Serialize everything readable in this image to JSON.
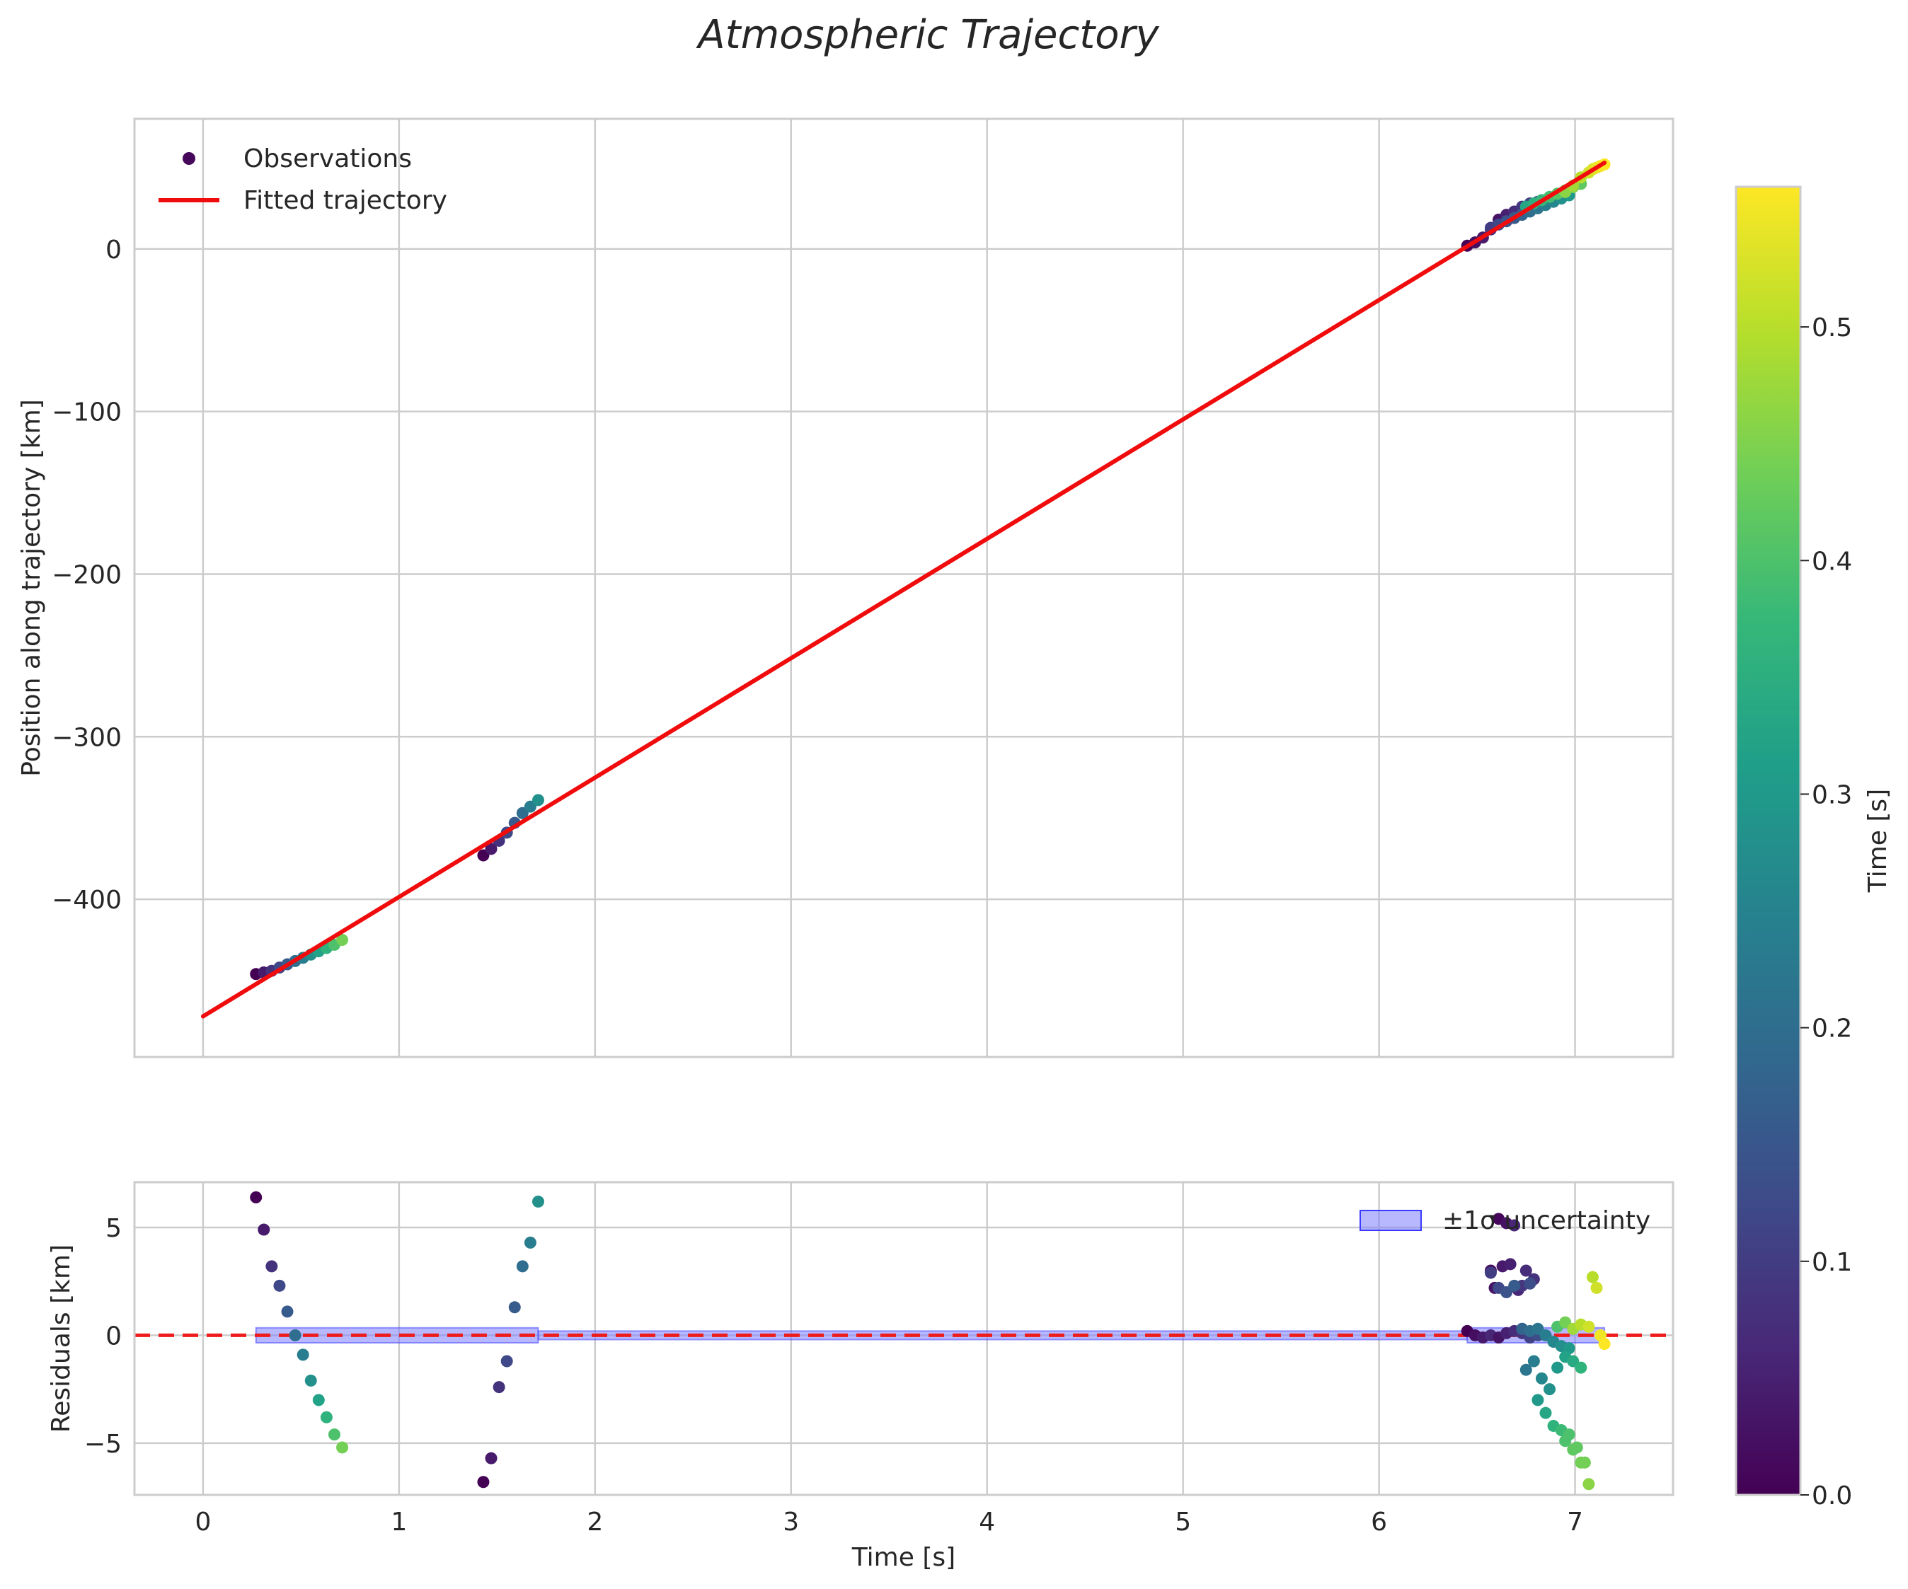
{
  "chart_data": {
    "type": "scatter",
    "title": "Atmospheric Trajectory",
    "colors": {
      "fit_line": "#f00c0c",
      "zero_line": "#ee1c1c",
      "band_fill": "#7e7eff",
      "band_edge": "#3b3bff",
      "grid": "#cccccc",
      "text": "#262626"
    },
    "top_panel": {
      "ylabel": "Position along trajectory [km]",
      "xlim": [
        -0.35,
        7.5
      ],
      "ylim": [
        -497,
        80
      ],
      "yticks": [
        0,
        -100,
        -200,
        -300,
        -400
      ],
      "ytick_labels": [
        "0",
        "−100",
        "−200",
        "−300",
        "−400"
      ],
      "legend": {
        "position": "upper-left",
        "observations_label": "Observations",
        "fit_label": "Fitted trajectory"
      },
      "fit_line": {
        "x": [
          0.0,
          7.15
        ],
        "y": [
          -472.0,
          53.0
        ]
      },
      "groups": [
        {
          "name": "group-1",
          "x": [
            0.27,
            0.31,
            0.35,
            0.39,
            0.43,
            0.47,
            0.51,
            0.55,
            0.59,
            0.63,
            0.67,
            0.71
          ],
          "y": [
            -446,
            -445,
            -444,
            -442,
            -440,
            -438,
            -436,
            -434,
            -432,
            -430,
            -428,
            -425
          ],
          "c": [
            0.0,
            0.04,
            0.08,
            0.12,
            0.16,
            0.2,
            0.24,
            0.28,
            0.32,
            0.36,
            0.4,
            0.44
          ]
        },
        {
          "name": "group-2",
          "x": [
            1.43,
            1.47,
            1.51,
            1.55,
            1.59,
            1.63,
            1.67,
            1.71
          ],
          "y": [
            -373,
            -369,
            -364,
            -359,
            -353,
            -347,
            -343,
            -339
          ],
          "c": [
            0.0,
            0.04,
            0.08,
            0.12,
            0.16,
            0.2,
            0.24,
            0.28
          ]
        },
        {
          "name": "group-3",
          "x": [
            6.45,
            6.49,
            6.53,
            6.57,
            6.61,
            6.65,
            6.69,
            6.73,
            6.77,
            6.81,
            6.57,
            6.61,
            6.65,
            6.69,
            6.73,
            6.77,
            6.81,
            6.85,
            6.89,
            6.93,
            6.97,
            6.75,
            6.79,
            6.83,
            6.87,
            6.91,
            6.95,
            6.99,
            7.03,
            6.95,
            6.99,
            7.03,
            7.07,
            7.09,
            7.11,
            7.13,
            7.15
          ],
          "y": [
            2,
            4,
            7,
            12,
            18,
            21,
            23,
            26,
            28,
            29,
            13,
            15,
            17,
            19,
            21,
            23,
            25,
            27,
            29,
            31,
            33,
            26,
            28,
            30,
            32,
            34,
            36,
            38,
            40,
            35,
            39,
            44,
            47,
            49,
            50,
            51,
            52
          ],
          "c": [
            0.0,
            0.02,
            0.04,
            0.06,
            0.03,
            0.05,
            0.07,
            0.09,
            0.11,
            0.13,
            0.1,
            0.12,
            0.14,
            0.16,
            0.18,
            0.2,
            0.22,
            0.24,
            0.26,
            0.28,
            0.3,
            0.33,
            0.35,
            0.37,
            0.39,
            0.41,
            0.43,
            0.45,
            0.42,
            0.46,
            0.48,
            0.5,
            0.52,
            0.53,
            0.54,
            0.55,
            0.56
          ]
        }
      ]
    },
    "bottom_panel": {
      "ylabel": "Residuals [km]",
      "xlabel": "Time [s]",
      "xlim": [
        -0.35,
        7.5
      ],
      "ylim": [
        -7.4,
        7.1
      ],
      "xticks": [
        0,
        1,
        2,
        3,
        4,
        5,
        6,
        7
      ],
      "xtick_labels": [
        "0",
        "1",
        "2",
        "3",
        "4",
        "5",
        "6",
        "7"
      ],
      "yticks": [
        5,
        0,
        -5
      ],
      "ytick_labels": [
        "5",
        "0",
        "−5"
      ],
      "legend": {
        "position": "upper-right",
        "band_label": "±1σ uncertainty"
      },
      "zero_line": 0,
      "bands": [
        {
          "x": [
            0.27,
            1.71
          ],
          "half_width": 0.35
        },
        {
          "x": [
            1.71,
            6.45
          ],
          "half_width": 0.2
        },
        {
          "x": [
            6.45,
            7.15
          ],
          "half_width": 0.35
        }
      ],
      "groups": [
        {
          "name": "group-1",
          "x": [
            0.27,
            0.31,
            0.35,
            0.39,
            0.43,
            0.47,
            0.51,
            0.55,
            0.59,
            0.63,
            0.67,
            0.71
          ],
          "y": [
            6.4,
            4.9,
            3.2,
            2.3,
            1.1,
            0.0,
            -0.9,
            -2.1,
            -3.0,
            -3.8,
            -4.6,
            -5.2
          ],
          "c": [
            0.0,
            0.04,
            0.08,
            0.12,
            0.16,
            0.2,
            0.24,
            0.28,
            0.32,
            0.36,
            0.4,
            0.44
          ]
        },
        {
          "name": "group-2",
          "x": [
            1.43,
            1.47,
            1.51,
            1.55,
            1.59,
            1.63,
            1.67,
            1.71
          ],
          "y": [
            -6.8,
            -5.7,
            -2.4,
            -1.2,
            1.3,
            3.2,
            4.3,
            6.2
          ],
          "c": [
            0.0,
            0.04,
            0.08,
            0.12,
            0.16,
            0.2,
            0.24,
            0.28
          ]
        },
        {
          "name": "group-3",
          "x": [
            6.45,
            6.49,
            6.53,
            6.57,
            6.61,
            6.65,
            6.69,
            6.73,
            6.77,
            6.81,
            6.57,
            6.59,
            6.63,
            6.67,
            6.71,
            6.75,
            6.79,
            6.61,
            6.65,
            6.69,
            6.73,
            6.77,
            6.57,
            6.61,
            6.65,
            6.69,
            6.73,
            6.77,
            6.81,
            6.85,
            6.89,
            6.93,
            6.97,
            6.75,
            6.79,
            6.83,
            6.87,
            6.91,
            6.95,
            6.99,
            7.03,
            6.81,
            6.85,
            6.89,
            6.93,
            6.97,
            7.01,
            7.05,
            6.95,
            6.99,
            7.03,
            7.07,
            6.91,
            6.95,
            6.99,
            7.03,
            7.07,
            7.09,
            7.11,
            7.13,
            7.15
          ],
          "y": [
            0.2,
            0.0,
            -0.1,
            0.0,
            -0.1,
            0.1,
            0.2,
            0.1,
            -0.1,
            0.0,
            3.0,
            2.2,
            3.2,
            3.3,
            2.1,
            3.0,
            2.6,
            5.4,
            5.2,
            5.1,
            2.3,
            2.4,
            2.9,
            2.2,
            2.0,
            2.3,
            0.3,
            0.2,
            0.3,
            0.0,
            -0.3,
            -0.5,
            -0.6,
            -1.6,
            -1.2,
            -2.0,
            -2.5,
            -1.5,
            -1.0,
            -1.2,
            -1.5,
            -3.0,
            -3.6,
            -4.2,
            -4.4,
            -4.6,
            -5.2,
            -5.9,
            -4.9,
            -5.3,
            -5.9,
            -6.9,
            0.4,
            0.6,
            0.3,
            0.5,
            0.4,
            2.7,
            2.2,
            0.0,
            -0.4
          ],
          "c": [
            0.0,
            0.02,
            0.04,
            0.06,
            0.03,
            0.05,
            0.07,
            0.09,
            0.11,
            0.13,
            0.02,
            0.03,
            0.04,
            0.05,
            0.06,
            0.07,
            0.08,
            0.01,
            0.03,
            0.06,
            0.09,
            0.13,
            0.1,
            0.12,
            0.14,
            0.16,
            0.18,
            0.2,
            0.22,
            0.24,
            0.26,
            0.28,
            0.3,
            0.22,
            0.24,
            0.26,
            0.28,
            0.3,
            0.32,
            0.34,
            0.36,
            0.3,
            0.33,
            0.36,
            0.38,
            0.4,
            0.42,
            0.44,
            0.4,
            0.42,
            0.44,
            0.46,
            0.4,
            0.44,
            0.48,
            0.5,
            0.52,
            0.5,
            0.52,
            0.55,
            0.56
          ]
        }
      ]
    },
    "colorbar": {
      "label": "Time [s]",
      "colormap": "viridis",
      "range": [
        0.0,
        0.56
      ],
      "ticks": [
        0.0,
        0.1,
        0.2,
        0.3,
        0.4,
        0.5
      ],
      "tick_labels": [
        "0.0",
        "0.1",
        "0.2",
        "0.3",
        "0.4",
        "0.5"
      ]
    }
  }
}
